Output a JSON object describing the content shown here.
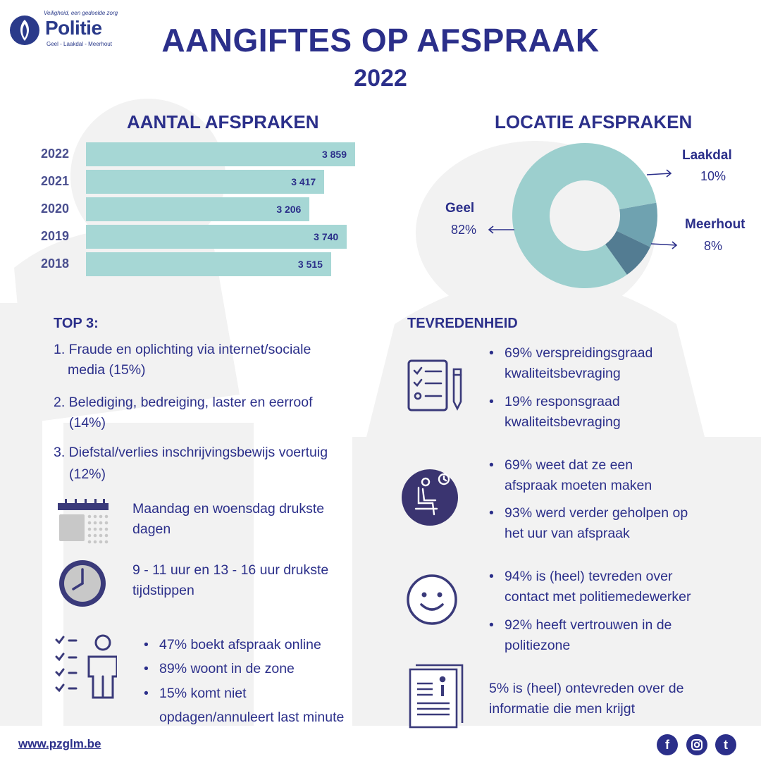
{
  "header": {
    "logo_tagline": "Veiligheid, een gedeelde zorg",
    "logo_name": "Politie",
    "logo_sub": "Geel - Laakdal - Meerhout",
    "title": "AANGIFTES OP AFSPRAAK",
    "year": "2022"
  },
  "appointments": {
    "title": "AANTAL AFSPRAKEN",
    "rows": [
      {
        "year": "2022",
        "label": "3 859"
      },
      {
        "year": "2021",
        "label": "3 417"
      },
      {
        "year": "2020",
        "label": "3 206"
      },
      {
        "year": "2019",
        "label": "3 740"
      },
      {
        "year": "2018",
        "label": "3 515"
      }
    ]
  },
  "location": {
    "title": "LOCATIE AFSPRAKEN",
    "geel_name": "Geel",
    "geel_pct": "82%",
    "laakdal_name": "Laakdal",
    "laakdal_pct": "10%",
    "meerhout_name": "Meerhout",
    "meerhout_pct": "8%"
  },
  "chart_data": [
    {
      "type": "bar",
      "title": "AANTAL AFSPRAKEN",
      "orientation": "horizontal",
      "categories": [
        "2022",
        "2021",
        "2020",
        "2019",
        "2018"
      ],
      "values": [
        3859,
        3417,
        3206,
        3740,
        3515
      ],
      "data_labels": [
        "3 859",
        "3 417",
        "3 206",
        "3 740",
        "3 515"
      ]
    },
    {
      "type": "pie",
      "title": "LOCATIE AFSPRAKEN",
      "donut": true,
      "categories": [
        "Geel",
        "Laakdal",
        "Meerhout"
      ],
      "values": [
        82,
        10,
        8
      ],
      "colors": [
        "#9ccfce",
        "#6fa2b0",
        "#537c92"
      ]
    }
  ],
  "top3": {
    "title": "TOP 3:",
    "item1_line1": "1. Fraude en oplichting via internet/sociale",
    "item1_line2": "media (15%)",
    "item2_line1": "2. Belediging, bedreiging, laster en eerroof",
    "item2_line2": "(14%)",
    "item3_line1": "3. Diefstal/verlies inschrijvingsbewijs voertuig",
    "item3_line2": "(12%)"
  },
  "facts": {
    "days_line1": "Maandag en woensdag drukste",
    "days_line2": "dagen",
    "hours_line1": "9 - 11 uur en 13 - 16 uur drukste",
    "hours_line2": "tijdstippen",
    "b1": "47% boekt afspraak online",
    "b2": "89% woont in de zone",
    "b3_line1": "15% komt niet",
    "b3_line2": "opdagen/annuleert last minute"
  },
  "satisfaction": {
    "title": "TEVREDENHEID",
    "s1_line1": "69% verspreidingsgraad",
    "s1_line2": "kwaliteitsbevraging",
    "s2_line1": "19% responsgraad",
    "s2_line2": "kwaliteitsbevraging",
    "s3_line1": "69% weet dat ze een",
    "s3_line2": "afspraak moeten maken",
    "s4_line1": "93% werd verder geholpen op",
    "s4_line2": "het uur van afspraak",
    "s5_line1": "94% is (heel) tevreden over",
    "s5_line2": "contact met politiemedewerker",
    "s6_line1": "92% heeft vertrouwen in de",
    "s6_line2": "politiezone",
    "s7_line1": "5% is (heel) ontevreden over de",
    "s7_line2": "informatie die men krijgt"
  },
  "footer": {
    "url": "www.pzglm.be",
    "facebook": "f",
    "twitter": "t"
  },
  "colors": {
    "navy": "#2b2f8a",
    "teal": "#a6d7d5",
    "bg_shape": "#f2f2f2"
  }
}
